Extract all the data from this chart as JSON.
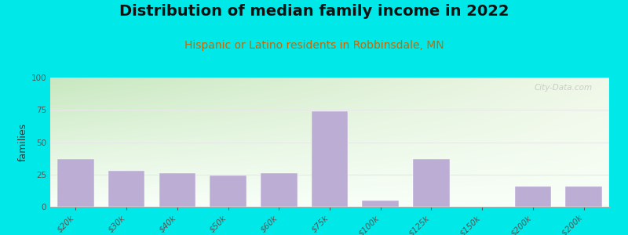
{
  "title": "Distribution of median family income in 2022",
  "subtitle": "Hispanic or Latino residents in Robbinsdale, MN",
  "ylabel": "families",
  "categories": [
    "$20k",
    "$30k",
    "$40k",
    "$50k",
    "$60k",
    "$75k",
    "$100k",
    "$125k",
    "$150k",
    "$200k",
    "> $200k"
  ],
  "values": [
    37,
    28,
    26,
    24,
    26,
    74,
    5,
    37,
    0,
    16,
    16
  ],
  "bar_color": "#bbadd4",
  "background_outer": "#00e8e8",
  "background_inner_topleft": "#c8e8c0",
  "background_inner_right": "#f0f8e8",
  "background_inner_bottom": "#f8fff8",
  "grid_color": "#e8e8e8",
  "title_fontsize": 14,
  "subtitle_fontsize": 10,
  "subtitle_color": "#cc6600",
  "ylabel_fontsize": 9,
  "tick_fontsize": 7.5,
  "ylim": [
    0,
    100
  ],
  "yticks": [
    0,
    25,
    50,
    75,
    100
  ],
  "watermark": "City-Data.com"
}
